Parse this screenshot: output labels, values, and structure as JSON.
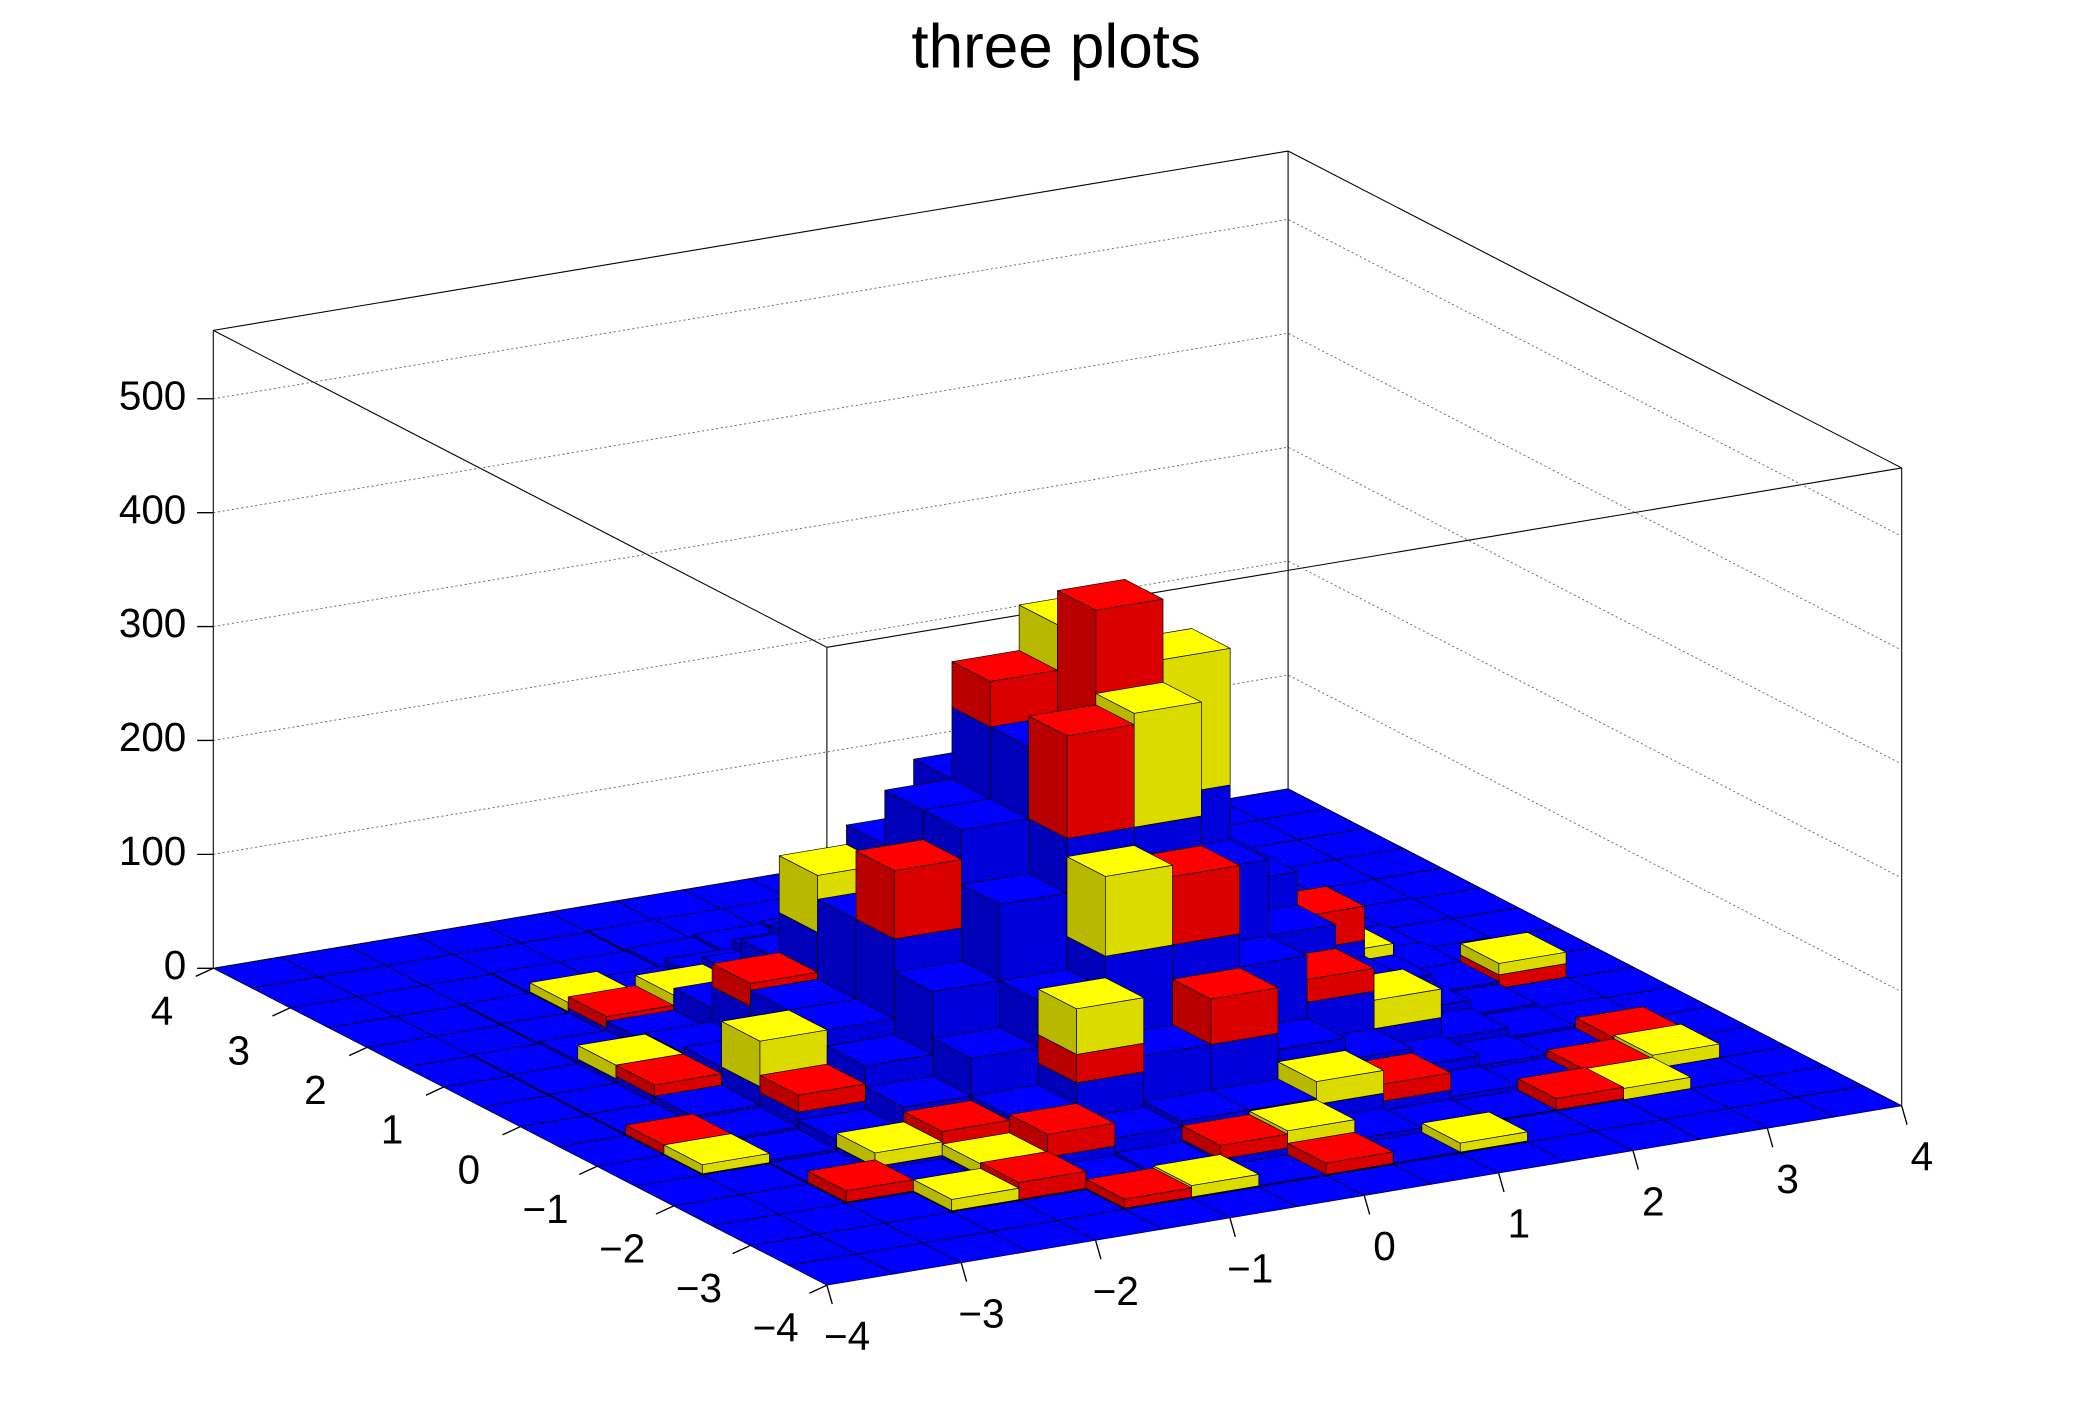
{
  "chart_data": {
    "type": "lego-stack",
    "title": "three plots",
    "xlim": [
      -4,
      4
    ],
    "ylim": [
      -4,
      4
    ],
    "zlim": [
      0,
      560
    ],
    "xticks": [
      {
        "value": -4,
        "label": "−4"
      },
      {
        "value": -3,
        "label": "−3"
      },
      {
        "value": -2,
        "label": "−2"
      },
      {
        "value": -1,
        "label": "−1"
      },
      0,
      1,
      2,
      3,
      4
    ],
    "yticks": [
      {
        "value": -4,
        "label": "−4"
      },
      {
        "value": -3,
        "label": "−3"
      },
      {
        "value": -2,
        "label": "−2"
      },
      {
        "value": -1,
        "label": "−1"
      },
      0,
      1,
      2,
      3,
      4
    ],
    "zticks": [
      0,
      100,
      200,
      300,
      400,
      500
    ],
    "grid": true,
    "series": [
      {
        "color": "#0000ff",
        "values": [
          [
            0,
            0,
            0,
            0,
            0,
            0,
            0,
            0,
            0,
            0,
            0,
            0,
            0,
            0,
            0,
            0
          ],
          [
            0,
            0,
            0,
            0,
            0,
            1,
            1,
            1,
            1,
            1,
            1,
            0,
            0,
            0,
            0,
            0
          ],
          [
            0,
            0,
            0,
            1,
            1,
            3,
            5,
            7,
            7,
            5,
            3,
            1,
            1,
            0,
            0,
            0
          ],
          [
            0,
            0,
            1,
            2,
            5,
            11,
            18,
            23,
            23,
            18,
            11,
            5,
            2,
            1,
            0,
            0
          ],
          [
            0,
            0,
            1,
            5,
            14,
            30,
            49,
            63,
            63,
            49,
            30,
            14,
            5,
            1,
            0,
            0
          ],
          [
            0,
            1,
            3,
            11,
            30,
            63,
            104,
            133,
            133,
            104,
            63,
            30,
            11,
            3,
            1,
            0
          ],
          [
            0,
            1,
            5,
            18,
            49,
            104,
            171,
            219,
            219,
            171,
            104,
            49,
            18,
            5,
            1,
            0
          ],
          [
            0,
            1,
            7,
            23,
            63,
            133,
            219,
            282,
            282,
            219,
            133,
            63,
            23,
            7,
            1,
            0
          ],
          [
            0,
            1,
            7,
            23,
            63,
            133,
            219,
            282,
            282,
            219,
            133,
            63,
            23,
            7,
            1,
            0
          ],
          [
            0,
            1,
            5,
            18,
            49,
            104,
            171,
            219,
            219,
            171,
            104,
            49,
            18,
            5,
            1,
            0
          ],
          [
            0,
            1,
            3,
            11,
            30,
            63,
            104,
            133,
            133,
            104,
            63,
            30,
            11,
            3,
            1,
            0
          ],
          [
            0,
            0,
            1,
            5,
            14,
            30,
            49,
            63,
            63,
            49,
            30,
            14,
            5,
            1,
            0,
            0
          ],
          [
            0,
            0,
            1,
            2,
            5,
            11,
            18,
            23,
            23,
            18,
            11,
            5,
            2,
            1,
            0,
            0
          ],
          [
            0,
            0,
            0,
            1,
            1,
            3,
            5,
            7,
            7,
            5,
            3,
            1,
            1,
            0,
            0,
            0
          ],
          [
            0,
            0,
            0,
            0,
            0,
            1,
            1,
            1,
            1,
            1,
            1,
            0,
            0,
            0,
            0,
            0
          ],
          [
            0,
            0,
            0,
            0,
            0,
            0,
            0,
            0,
            0,
            0,
            0,
            0,
            0,
            0,
            0,
            0
          ]
        ]
      },
      {
        "color": "#ff0000",
        "values": [
          [
            0,
            0,
            0,
            0,
            0,
            0,
            0,
            0,
            0,
            0,
            0,
            0,
            0,
            0,
            0,
            0
          ],
          [
            0,
            0,
            0,
            0,
            0,
            8,
            0,
            0,
            10,
            0,
            0,
            0,
            0,
            0,
            0,
            0
          ],
          [
            0,
            0,
            0,
            0,
            15,
            0,
            0,
            12,
            0,
            0,
            0,
            0,
            10,
            0,
            0,
            0
          ],
          [
            0,
            0,
            10,
            0,
            0,
            20,
            0,
            0,
            0,
            0,
            15,
            0,
            0,
            8,
            0,
            0
          ],
          [
            0,
            0,
            0,
            0,
            12,
            0,
            25,
            0,
            40,
            0,
            0,
            0,
            0,
            0,
            10,
            0
          ],
          [
            0,
            0,
            0,
            0,
            0,
            0,
            0,
            0,
            60,
            0,
            20,
            0,
            0,
            0,
            0,
            0
          ],
          [
            0,
            8,
            0,
            15,
            0,
            0,
            0,
            90,
            0,
            0,
            0,
            0,
            0,
            0,
            0,
            0
          ],
          [
            0,
            0,
            0,
            0,
            0,
            60,
            0,
            0,
            110,
            0,
            0,
            30,
            0,
            0,
            12,
            0
          ],
          [
            0,
            0,
            10,
            0,
            0,
            0,
            0,
            40,
            0,
            0,
            0,
            0,
            0,
            0,
            0,
            0
          ],
          [
            0,
            0,
            0,
            0,
            20,
            0,
            0,
            0,
            0,
            0,
            20,
            0,
            0,
            0,
            0,
            0
          ],
          [
            0,
            0,
            0,
            0,
            0,
            0,
            0,
            0,
            0,
            30,
            0,
            0,
            0,
            0,
            0,
            0
          ],
          [
            0,
            0,
            0,
            10,
            0,
            0,
            0,
            0,
            0,
            0,
            0,
            0,
            0,
            0,
            0,
            0
          ],
          [
            0,
            0,
            0,
            0,
            0,
            0,
            0,
            0,
            0,
            0,
            0,
            0,
            8,
            0,
            0,
            0
          ],
          [
            0,
            0,
            0,
            0,
            0,
            0,
            0,
            0,
            0,
            0,
            0,
            0,
            0,
            0,
            0,
            0
          ],
          [
            0,
            0,
            0,
            0,
            0,
            0,
            0,
            0,
            0,
            0,
            0,
            0,
            0,
            0,
            0,
            0
          ],
          [
            0,
            0,
            0,
            0,
            0,
            0,
            0,
            0,
            0,
            0,
            0,
            0,
            0,
            0,
            0,
            0
          ]
        ]
      },
      {
        "color": "#ffff00",
        "values": [
          [
            0,
            0,
            0,
            0,
            0,
            0,
            0,
            0,
            0,
            0,
            0,
            0,
            0,
            0,
            0,
            0
          ],
          [
            0,
            0,
            0,
            0,
            0,
            0,
            10,
            0,
            0,
            0,
            8,
            0,
            0,
            0,
            0,
            0
          ],
          [
            0,
            0,
            0,
            10,
            0,
            0,
            0,
            0,
            15,
            0,
            0,
            0,
            0,
            10,
            0,
            0
          ],
          [
            0,
            0,
            0,
            0,
            10,
            0,
            0,
            0,
            0,
            20,
            0,
            0,
            0,
            0,
            12,
            0
          ],
          [
            0,
            0,
            0,
            12,
            0,
            0,
            40,
            0,
            0,
            0,
            0,
            0,
            0,
            0,
            0,
            0
          ],
          [
            0,
            8,
            0,
            0,
            0,
            0,
            0,
            70,
            0,
            0,
            0,
            25,
            0,
            0,
            0,
            0
          ],
          [
            0,
            0,
            0,
            0,
            0,
            0,
            0,
            0,
            100,
            0,
            0,
            0,
            0,
            0,
            0,
            0
          ],
          [
            0,
            0,
            0,
            40,
            0,
            0,
            0,
            0,
            0,
            120,
            0,
            0,
            0,
            0,
            10,
            0
          ],
          [
            0,
            0,
            0,
            0,
            0,
            0,
            0,
            0,
            80,
            0,
            0,
            0,
            10,
            0,
            0,
            0
          ],
          [
            0,
            0,
            12,
            0,
            0,
            50,
            0,
            0,
            0,
            0,
            0,
            0,
            0,
            0,
            0,
            0
          ],
          [
            0,
            0,
            0,
            0,
            0,
            0,
            0,
            0,
            60,
            0,
            0,
            0,
            0,
            0,
            0,
            0
          ],
          [
            0,
            0,
            0,
            0,
            10,
            0,
            0,
            0,
            0,
            0,
            0,
            0,
            0,
            0,
            0,
            0
          ],
          [
            0,
            0,
            0,
            8,
            0,
            0,
            0,
            0,
            0,
            0,
            0,
            0,
            0,
            0,
            0,
            0
          ],
          [
            0,
            0,
            0,
            0,
            0,
            0,
            0,
            0,
            0,
            0,
            0,
            0,
            0,
            0,
            0,
            0
          ],
          [
            0,
            0,
            0,
            0,
            0,
            0,
            0,
            0,
            0,
            0,
            0,
            0,
            0,
            0,
            0,
            0
          ],
          [
            0,
            0,
            0,
            0,
            0,
            0,
            0,
            0,
            0,
            0,
            0,
            0,
            0,
            0,
            0,
            0
          ]
        ]
      }
    ]
  }
}
